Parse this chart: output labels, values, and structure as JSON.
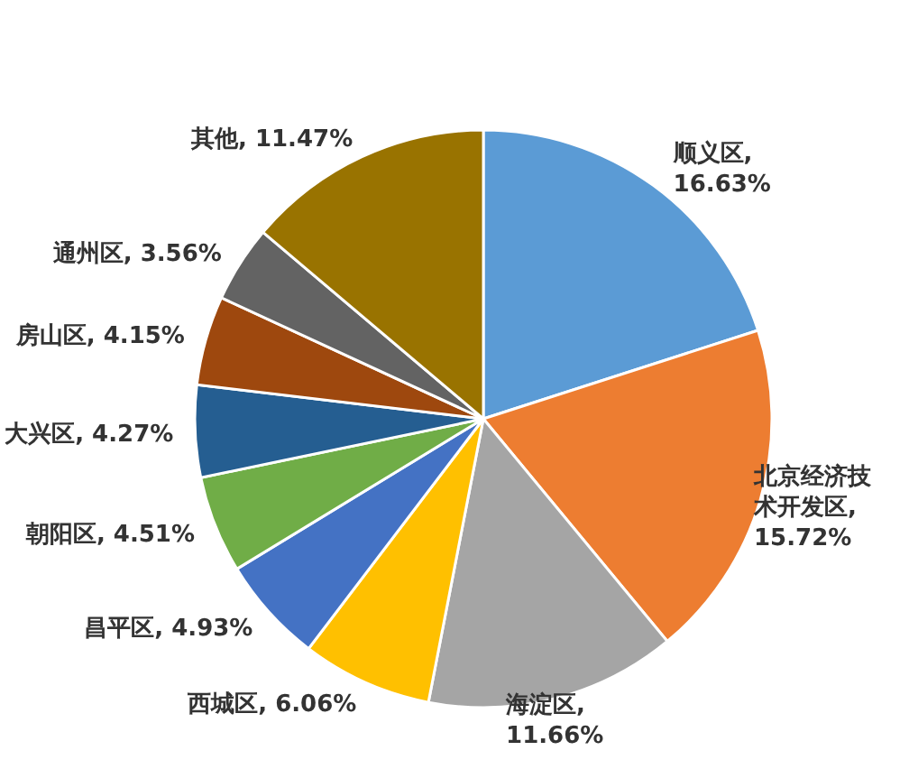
{
  "chart_data": {
    "type": "pie",
    "categories": [
      "顺义区",
      "北京经济技术开发区",
      "海淀区",
      "西城区",
      "昌平区",
      "朝阳区",
      "大兴区",
      "房山区",
      "通州区",
      "其他"
    ],
    "values": [
      16.63,
      15.72,
      11.66,
      6.06,
      4.93,
      4.51,
      4.27,
      4.15,
      3.56,
      11.47
    ],
    "value_labels": [
      ", 16.63%",
      ", 15.72%",
      ", 11.66%",
      ", 6.06%",
      ", 4.93%",
      ", 4.51%",
      ", 4.27%",
      ", 4.15%",
      ", 3.56%",
      ", 11.47%"
    ],
    "colors": [
      "#5b9bd5",
      "#ed7d31",
      "#a5a5a5",
      "#ffc000",
      "#4472c4",
      "#70ad47",
      "#255e91",
      "#9e480e",
      "#636363",
      "#997300"
    ]
  }
}
